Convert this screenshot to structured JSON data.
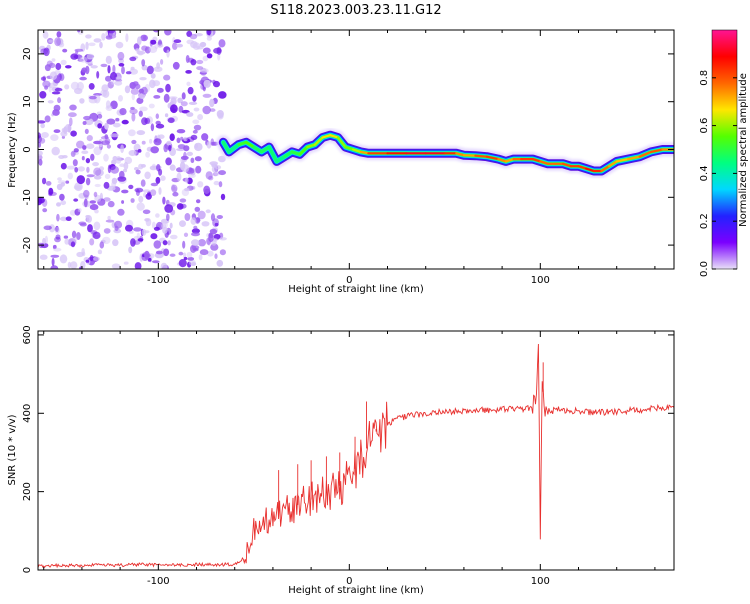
{
  "figure": {
    "title": "S118.2023.003.23.11.G12"
  },
  "chart_data": [
    {
      "type": "heatmap",
      "xlabel": "Height of straight line (km)",
      "ylabel": "Frequency (Hz)",
      "xlim": [
        -163,
        170
      ],
      "ylim": [
        -25,
        25
      ],
      "xticks": [
        -100,
        0,
        100
      ],
      "yticks": [
        -20,
        -10,
        0,
        10,
        20
      ],
      "xtick_labels": [
        "-100",
        "0",
        "100"
      ],
      "ytick_labels": [
        "-20",
        "-10",
        "0",
        "10",
        "20"
      ],
      "noise_region_x": [
        -163,
        -66
      ],
      "ridge": {
        "x": [
          -66,
          -63,
          -58,
          -54,
          -50,
          -46,
          -42,
          -38,
          -34,
          -30,
          -26,
          -22,
          -18,
          -14,
          -10,
          -6,
          -2,
          2,
          6,
          10,
          20,
          30,
          40,
          50,
          56,
          60,
          66,
          72,
          78,
          82,
          86,
          90,
          96,
          100,
          104,
          108,
          112,
          116,
          120,
          124,
          128,
          132,
          136,
          140,
          146,
          152,
          158,
          164,
          170
        ],
        "y": [
          1.5,
          -0.5,
          1.0,
          1.5,
          0.5,
          -0.5,
          0.5,
          -2.5,
          -1.5,
          -0.5,
          -1.0,
          0.5,
          1.0,
          2.5,
          3.0,
          2.5,
          0.5,
          0,
          -0.5,
          -0.8,
          -0.8,
          -0.8,
          -0.8,
          -0.8,
          -0.8,
          -1.2,
          -1.3,
          -1.5,
          -2.0,
          -2.5,
          -2.0,
          -2.0,
          -2.0,
          -2.5,
          -3.0,
          -3.0,
          -3.0,
          -3.5,
          -3.5,
          -4.0,
          -4.5,
          -4.5,
          -3.5,
          -2.5,
          -2.0,
          -1.5,
          -0.5,
          0,
          0
        ],
        "amplitude": [
          0.5,
          0.4,
          0.45,
          0.6,
          0.5,
          0.45,
          0.5,
          0.4,
          0.45,
          0.5,
          0.5,
          0.6,
          0.6,
          0.65,
          0.7,
          0.65,
          0.55,
          0.6,
          0.65,
          0.8,
          0.85,
          0.9,
          0.92,
          0.9,
          0.8,
          0.7,
          0.75,
          0.85,
          0.8,
          0.7,
          0.75,
          0.8,
          0.85,
          0.8,
          0.75,
          0.8,
          0.75,
          0.85,
          0.8,
          0.85,
          0.9,
          0.8,
          0.75,
          0.7,
          0.7,
          0.75,
          0.8,
          0.8,
          0.7
        ]
      },
      "colorbar": {
        "label": "Normalized spectral amplitude",
        "range": [
          0,
          1
        ],
        "ticks": [
          0.0,
          0.2,
          0.4,
          0.6,
          0.8
        ],
        "tick_labels": [
          "0.0",
          "0.2",
          "0.4",
          "0.6",
          "0.8"
        ],
        "stops": [
          "#e8e0f8",
          "#7b00ff",
          "#2222ff",
          "#00d8ff",
          "#00ff80",
          "#55ff00",
          "#ffe600",
          "#ff6600",
          "#ff0000",
          "#ff1493"
        ]
      },
      "colors": {
        "noise": "#7a1fe0"
      }
    },
    {
      "type": "line",
      "xlabel": "Height of straight line (km)",
      "ylabel": "SNR (10 * v/v)",
      "xlim": [
        -163,
        170
      ],
      "ylim": [
        0,
        610
      ],
      "xticks": [
        -100,
        0,
        100
      ],
      "yticks": [
        0,
        200,
        400,
        600
      ],
      "xtick_labels": [
        "-100",
        "0",
        "100"
      ],
      "ytick_labels": [
        "0",
        "200",
        "400",
        "600"
      ],
      "series": [
        {
          "color": "#e8302e",
          "x": [
            -163,
            -150,
            -140,
            -130,
            -120,
            -110,
            -100,
            -90,
            -80,
            -70,
            -60,
            -55,
            -52,
            -50,
            -48,
            -45,
            -40,
            -35,
            -30,
            -25,
            -20,
            -15,
            -10,
            -5,
            0,
            5,
            8,
            10,
            12,
            15,
            20,
            25,
            30,
            40,
            50,
            60,
            70,
            80,
            90,
            95,
            98,
            99,
            100,
            101,
            102,
            105,
            110,
            120,
            130,
            140,
            150,
            160,
            170
          ],
          "values": [
            10,
            12,
            11,
            13,
            12,
            14,
            13,
            12,
            14,
            13,
            15,
            30,
            70,
            100,
            90,
            120,
            140,
            150,
            160,
            170,
            180,
            190,
            200,
            215,
            240,
            270,
            300,
            320,
            340,
            360,
            375,
            385,
            392,
            400,
            404,
            405,
            408,
            410,
            412,
            412,
            430,
            600,
            70,
            500,
            410,
            405,
            410,
            405,
            402,
            404,
            408,
            412,
            418
          ],
          "spikes": [
            {
              "x": -37,
              "y": 255
            },
            {
              "x": -27,
              "y": 270
            },
            {
              "x": -20,
              "y": 280
            },
            {
              "x": -12,
              "y": 290
            },
            {
              "x": -5,
              "y": 300
            },
            {
              "x": 3,
              "y": 340
            },
            {
              "x": 9,
              "y": 430
            },
            {
              "x": 14,
              "y": 360
            },
            {
              "x": 101.5,
              "y": 530
            }
          ]
        }
      ]
    }
  ]
}
